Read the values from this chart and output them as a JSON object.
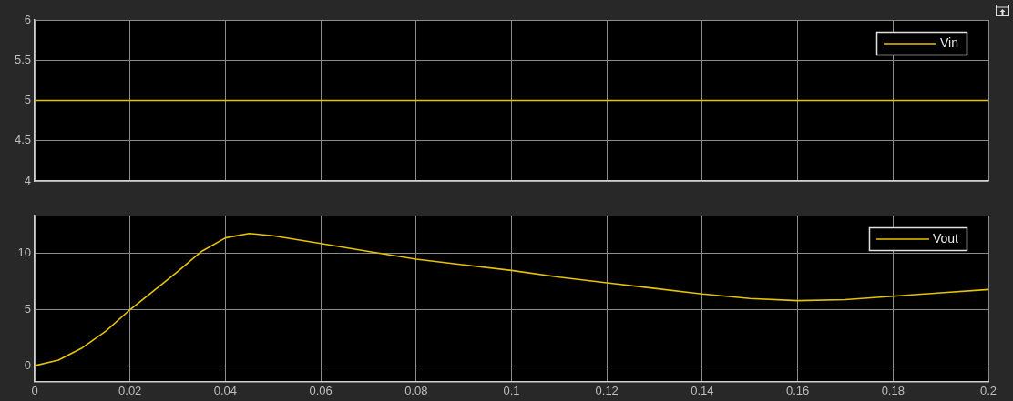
{
  "chart_data": [
    {
      "type": "line",
      "x": [
        0,
        0.2
      ],
      "series": [
        {
          "name": "Vin",
          "color": "#e6c300",
          "values": [
            5,
            5
          ]
        }
      ],
      "xlim": [
        0,
        0.2
      ],
      "xticks": [
        0,
        0.02,
        0.04,
        0.06,
        0.08,
        0.1,
        0.12,
        0.14,
        0.16,
        0.18,
        0.2
      ],
      "ylim": [
        4,
        6
      ],
      "yticks": [
        4,
        4.5,
        5,
        5.5,
        6
      ],
      "grid": true,
      "legend": "top right",
      "tick_labels": "y"
    },
    {
      "type": "line",
      "x": [
        0,
        0.005,
        0.01,
        0.015,
        0.02,
        0.025,
        0.03,
        0.035,
        0.04,
        0.045,
        0.05,
        0.06,
        0.07,
        0.08,
        0.09,
        0.1,
        0.11,
        0.12,
        0.13,
        0.14,
        0.15,
        0.16,
        0.17,
        0.18,
        0.19,
        0.2
      ],
      "series": [
        {
          "name": "Vout",
          "color": "#e6c300",
          "values": [
            0,
            0.5,
            1.6,
            3.1,
            5.0,
            6.7,
            8.4,
            10.2,
            11.4,
            11.8,
            11.6,
            10.9,
            10.2,
            9.5,
            9.0,
            8.5,
            7.9,
            7.4,
            6.9,
            6.4,
            6.0,
            5.8,
            5.9,
            6.2,
            6.5,
            6.8
          ]
        }
      ],
      "xlim": [
        0,
        0.2
      ],
      "xticks": [
        0,
        0.02,
        0.04,
        0.06,
        0.08,
        0.1,
        0.12,
        0.14,
        0.16,
        0.18,
        0.2
      ],
      "ylim": [
        -1.4,
        13.4
      ],
      "yticks": [
        0,
        5,
        10
      ],
      "grid": true,
      "legend": "top right"
    }
  ]
}
